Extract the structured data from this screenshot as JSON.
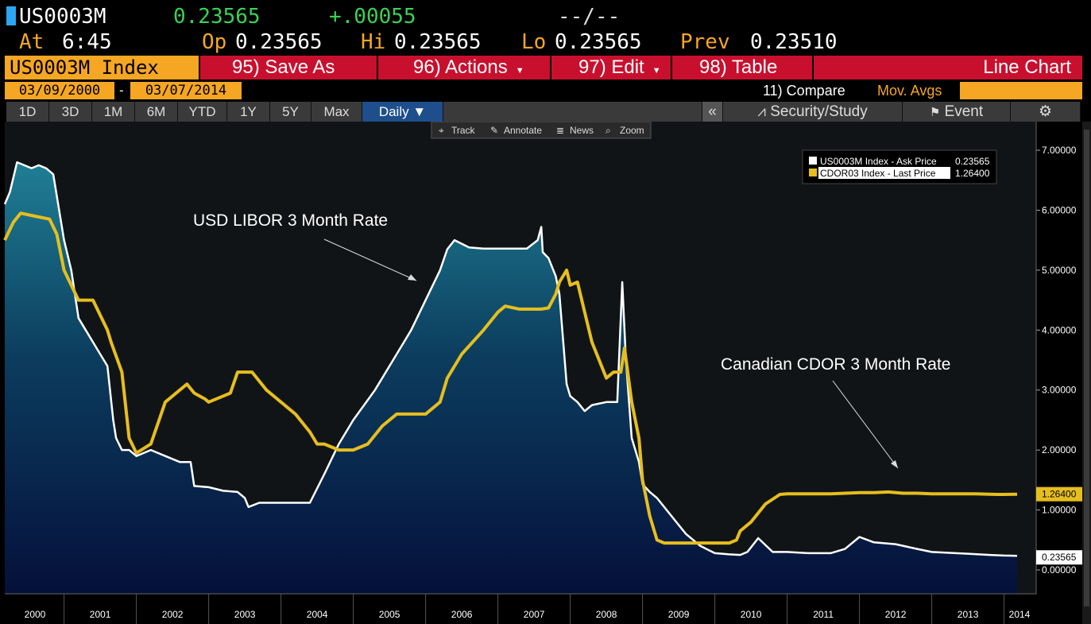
{
  "ticker": {
    "symbol": "US0003M",
    "last": "0.23565",
    "change": "+.00055",
    "dashes": "--/--"
  },
  "quote": {
    "at_label": "At",
    "time": "6:45",
    "open_label": "Op",
    "open": "0.23565",
    "high_label": "Hi",
    "high": "0.23565",
    "low_label": "Lo",
    "low": "0.23565",
    "prev_label": "Prev",
    "prev": "0.23510"
  },
  "menu": {
    "index": "US0003M Index",
    "save_as": "95) Save As",
    "actions": "96) Actions",
    "edit": "97) Edit",
    "table": "98) Table",
    "chart_type": "Line Chart"
  },
  "range": {
    "start": "03/09/2000",
    "sep": "-",
    "end": "03/07/2014",
    "compare": "11) Compare",
    "mov_avgs": "Mov. Avgs"
  },
  "periods": [
    "1D",
    "3D",
    "1M",
    "6M",
    "YTD",
    "1Y",
    "5Y",
    "Max"
  ],
  "frequency": "Daily ▼",
  "toolbar": {
    "collapse": "«",
    "security_study": "Security/Study",
    "event": "Event"
  },
  "chart_tools": [
    "Track",
    "Annotate",
    "News",
    "Zoom"
  ],
  "colors": {
    "libor": "#ffffff",
    "cdor": "#e6be1e",
    "area_top": "#1f7f95",
    "area_bottom": "#05103a",
    "accent": "#f5a623",
    "menu_red": "#c8102e"
  },
  "chart_data": {
    "type": "line",
    "title": "",
    "xlabel": "",
    "ylabel": "",
    "xlim": [
      2000.18,
      2014.18
    ],
    "ylim": [
      0,
      7
    ],
    "y_ticks": [
      "0.00000",
      "1.00000",
      "2.00000",
      "3.00000",
      "4.00000",
      "5.00000",
      "6.00000",
      "7.00000"
    ],
    "x_ticks": [
      "2000",
      "2001",
      "2002",
      "2003",
      "2004",
      "2005",
      "2006",
      "2007",
      "2008",
      "2009",
      "2010",
      "2011",
      "2012",
      "2013",
      "2014"
    ],
    "legend_position": "top-right",
    "last_value_labels": [
      "1.26400",
      "0.23565"
    ],
    "annotations": [
      "USD LIBOR 3 Month Rate",
      "Canadian CDOR 3 Month Rate"
    ],
    "series": [
      {
        "name": "US0003M Index - Ask Price",
        "value_label": "0.23565",
        "x": [
          2000.18,
          2000.25,
          2000.35,
          2000.45,
          2000.55,
          2000.65,
          2000.75,
          2000.85,
          2001.0,
          2001.1,
          2001.2,
          2001.3,
          2001.4,
          2001.5,
          2001.6,
          2001.68,
          2001.72,
          2001.8,
          2001.9,
          2002.0,
          2002.2,
          2002.4,
          2002.6,
          2002.75,
          2002.8,
          2003.0,
          2003.2,
          2003.4,
          2003.5,
          2003.55,
          2003.7,
          2004.0,
          2004.2,
          2004.4,
          2004.6,
          2004.8,
          2005.0,
          2005.3,
          2005.6,
          2005.8,
          2006.0,
          2006.2,
          2006.3,
          2006.4,
          2006.6,
          2006.8,
          2007.0,
          2007.2,
          2007.4,
          2007.55,
          2007.6,
          2007.62,
          2007.7,
          2007.8,
          2007.85,
          2007.95,
          2008.0,
          2008.1,
          2008.2,
          2008.3,
          2008.5,
          2008.65,
          2008.72,
          2008.77,
          2008.85,
          2008.95,
          2009.0,
          2009.1,
          2009.2,
          2009.4,
          2009.6,
          2009.8,
          2010.0,
          2010.2,
          2010.35,
          2010.45,
          2010.6,
          2010.8,
          2011.0,
          2011.3,
          2011.6,
          2011.8,
          2012.0,
          2012.2,
          2012.5,
          2012.8,
          2013.0,
          2013.5,
          2013.8,
          2014.0,
          2014.18
        ],
        "y": [
          6.1,
          6.3,
          6.8,
          6.75,
          6.7,
          6.75,
          6.7,
          6.6,
          5.5,
          5.0,
          4.2,
          4.0,
          3.8,
          3.6,
          3.4,
          2.5,
          2.2,
          2.0,
          2.0,
          1.9,
          2.0,
          1.9,
          1.8,
          1.8,
          1.4,
          1.38,
          1.32,
          1.3,
          1.2,
          1.05,
          1.12,
          1.12,
          1.12,
          1.12,
          1.6,
          2.1,
          2.5,
          3.0,
          3.6,
          4.0,
          4.5,
          5.0,
          5.35,
          5.5,
          5.38,
          5.36,
          5.36,
          5.36,
          5.36,
          5.5,
          5.72,
          5.3,
          5.2,
          4.9,
          4.6,
          3.1,
          2.9,
          2.8,
          2.65,
          2.75,
          2.8,
          2.8,
          4.8,
          3.5,
          2.2,
          1.8,
          1.43,
          1.3,
          1.2,
          0.9,
          0.6,
          0.4,
          0.28,
          0.26,
          0.25,
          0.3,
          0.53,
          0.3,
          0.3,
          0.28,
          0.28,
          0.35,
          0.55,
          0.46,
          0.43,
          0.35,
          0.3,
          0.27,
          0.25,
          0.24,
          0.23565
        ]
      },
      {
        "name": "CDOR03 Index - Last Price",
        "value_label": "1.26400",
        "x": [
          2000.18,
          2000.3,
          2000.4,
          2000.6,
          2000.8,
          2000.9,
          2001.0,
          2001.2,
          2001.4,
          2001.6,
          2001.65,
          2001.8,
          2001.9,
          2002.0,
          2002.2,
          2002.4,
          2002.6,
          2002.7,
          2002.8,
          2002.95,
          2003.0,
          2003.2,
          2003.3,
          2003.4,
          2003.6,
          2003.8,
          2004.0,
          2004.2,
          2004.4,
          2004.5,
          2004.6,
          2004.8,
          2005.0,
          2005.2,
          2005.4,
          2005.6,
          2005.8,
          2005.9,
          2006.0,
          2006.2,
          2006.3,
          2006.5,
          2006.8,
          2007.0,
          2007.1,
          2007.3,
          2007.45,
          2007.6,
          2007.7,
          2007.8,
          2007.85,
          2007.95,
          2008.0,
          2008.1,
          2008.2,
          2008.3,
          2008.4,
          2008.5,
          2008.6,
          2008.65,
          2008.7,
          2008.75,
          2008.85,
          2008.95,
          2009.0,
          2009.1,
          2009.2,
          2009.3,
          2009.5,
          2009.7,
          2009.8,
          2009.9,
          2010.0,
          2010.1,
          2010.2,
          2010.3,
          2010.35,
          2010.5,
          2010.7,
          2010.9,
          2011.0,
          2011.3,
          2011.6,
          2011.8,
          2012.0,
          2012.2,
          2012.4,
          2012.6,
          2012.8,
          2013.0,
          2013.3,
          2013.6,
          2013.9,
          2014.0,
          2014.18
        ],
        "y": [
          5.5,
          5.8,
          5.95,
          5.9,
          5.85,
          5.6,
          5.0,
          4.5,
          4.5,
          4.0,
          3.8,
          3.3,
          2.2,
          1.95,
          2.1,
          2.8,
          3.0,
          3.1,
          2.95,
          2.85,
          2.8,
          2.9,
          2.95,
          3.3,
          3.3,
          3.0,
          2.8,
          2.6,
          2.3,
          2.1,
          2.1,
          2.0,
          2.0,
          2.1,
          2.4,
          2.6,
          2.6,
          2.6,
          2.6,
          2.8,
          3.2,
          3.6,
          4.0,
          4.3,
          4.4,
          4.35,
          4.35,
          4.35,
          4.37,
          4.6,
          4.8,
          5.0,
          4.75,
          4.8,
          4.3,
          3.8,
          3.5,
          3.2,
          3.3,
          3.3,
          3.3,
          3.7,
          2.8,
          2.2,
          1.5,
          0.9,
          0.5,
          0.45,
          0.45,
          0.45,
          0.45,
          0.45,
          0.45,
          0.45,
          0.45,
          0.5,
          0.65,
          0.8,
          1.1,
          1.26,
          1.27,
          1.27,
          1.27,
          1.28,
          1.29,
          1.29,
          1.3,
          1.28,
          1.28,
          1.27,
          1.27,
          1.27,
          1.26,
          1.26,
          1.264
        ]
      }
    ]
  }
}
